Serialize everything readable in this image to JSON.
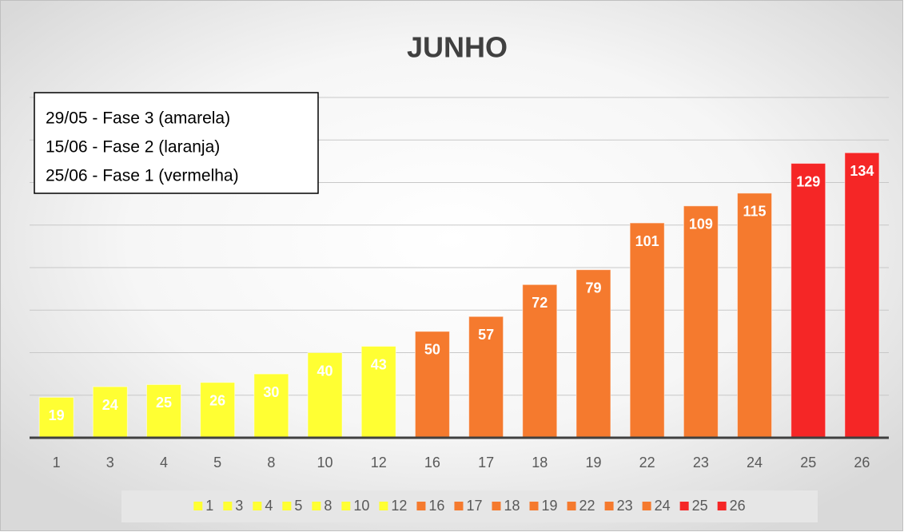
{
  "chart_data": {
    "type": "bar",
    "title": "JUNHO",
    "annotation": [
      "29/05 - Fase 3 (amarela)",
      "15/06 - Fase 2 (laranja)",
      "25/06 - Fase 1 (vermelha)"
    ],
    "categories": [
      "1",
      "3",
      "4",
      "5",
      "8",
      "10",
      "12",
      "16",
      "17",
      "18",
      "19",
      "22",
      "23",
      "24",
      "25",
      "26"
    ],
    "values": [
      19,
      24,
      25,
      26,
      30,
      40,
      43,
      50,
      57,
      72,
      79,
      101,
      109,
      115,
      129,
      134
    ],
    "colors": [
      "#ffff33",
      "#ffff33",
      "#ffff33",
      "#ffff33",
      "#ffff33",
      "#ffff33",
      "#ffff33",
      "#f57a2e",
      "#f57a2e",
      "#f57a2e",
      "#f57a2e",
      "#f57a2e",
      "#f57a2e",
      "#f57a2e",
      "#f52626",
      "#f52626"
    ],
    "ylim": [
      0,
      160
    ],
    "yticks": [
      0,
      20,
      40,
      60,
      80,
      100,
      120,
      140,
      160
    ],
    "grid": true,
    "legend": "bottom"
  }
}
